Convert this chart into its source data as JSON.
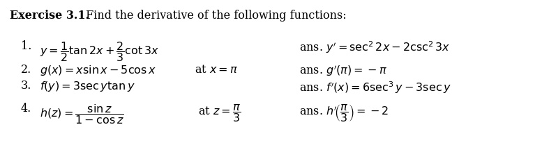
{
  "title_bold": "Exercise 3.1.",
  "title_normal": " Find the derivative of the following functions:",
  "background_color": "#ffffff",
  "text_color": "#000000",
  "figsize": [
    7.87,
    2.06
  ],
  "dpi": 100,
  "title_fontsize": 11.5,
  "body_fontsize": 11.5,
  "rows": [
    {
      "num": "1.",
      "lhs": "$y = \\dfrac{1}{2}\\tan 2x + \\dfrac{2}{3}\\cot 3x$",
      "condition": "",
      "ans": "ans. $y' = \\sec^2 2x - 2\\csc^2 3x$"
    },
    {
      "num": "2.",
      "lhs": "$g(x) = x\\sin x - 5\\cos x$",
      "condition": "  at $x = \\pi$",
      "ans": "ans. $g'(\\pi) = -\\pi$"
    },
    {
      "num": "3.",
      "lhs": "$f(y) = 3\\sec y\\tan y$",
      "condition": "",
      "ans": "ans. $f'(x) = 6\\sec^3 y - 3\\sec y$"
    },
    {
      "num": "4.",
      "lhs": "$h(z) = \\dfrac{\\sin z}{1-\\cos z}$",
      "condition": "   at $z = \\dfrac{\\pi}{3}$",
      "ans": "ans. $h'\\!\\left(\\dfrac{\\pi}{3}\\right) = -2$"
    }
  ]
}
